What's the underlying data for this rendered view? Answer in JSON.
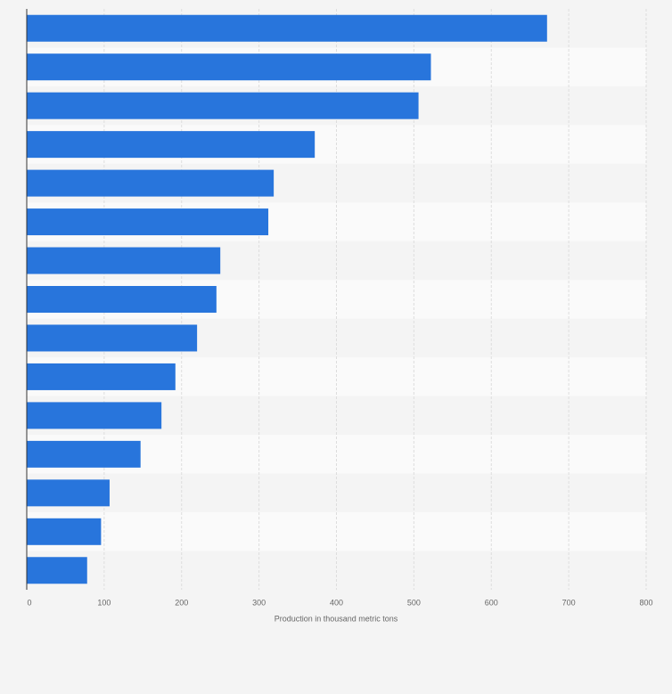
{
  "chart_data": {
    "type": "bar",
    "orientation": "horizontal",
    "x_label": "Production in thousand metric tons",
    "categories": [
      null,
      null,
      null,
      null,
      null,
      null,
      null,
      null,
      null,
      null,
      null,
      null,
      null,
      null,
      null
    ],
    "values": [
      672,
      522,
      506,
      372,
      319,
      312,
      250,
      245,
      220,
      192,
      174,
      147,
      107,
      96,
      78
    ],
    "color": "#2875dc",
    "xlim": [
      0,
      800
    ],
    "xticks": [
      0,
      100,
      200,
      300,
      400,
      500,
      600,
      700,
      800
    ],
    "grid": true
  }
}
